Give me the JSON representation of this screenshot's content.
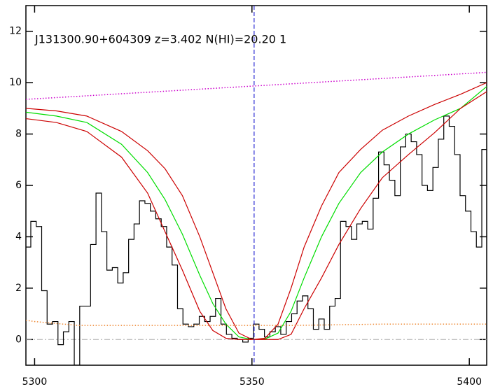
{
  "chart_data": {
    "type": "line",
    "annotation": "J131300.90+604309 z=3.402 N(HI)=20.20 1",
    "xlim": [
      5298,
      5404
    ],
    "ylim": [
      -1,
      13
    ],
    "xticks": [
      5300,
      5350,
      5400
    ],
    "yticks": [
      0,
      2,
      4,
      6,
      8,
      10,
      12
    ],
    "series": [
      {
        "style": "step",
        "color": "#000000",
        "x": [
          5298.5,
          5299.75,
          5301,
          5302.25,
          5303.5,
          5304.75,
          5306,
          5307.25,
          5308.5,
          5309.75,
          5311,
          5312.25,
          5313.5,
          5314.75,
          5316,
          5317.25,
          5318.5,
          5319.75,
          5321,
          5322.25,
          5323.5,
          5324.75,
          5326,
          5327.25,
          5328.5,
          5329.75,
          5331,
          5332.25,
          5333.5,
          5334.75,
          5336,
          5337.25,
          5338.5,
          5339.75,
          5341,
          5342.25,
          5343.5,
          5344.75,
          5346,
          5347.25,
          5348.5,
          5349.75,
          5351,
          5352.25,
          5353.5,
          5354.75,
          5356,
          5357.25,
          5358.5,
          5359.75,
          5361,
          5362.25,
          5363.5,
          5364.75,
          5366,
          5367.25,
          5368.5,
          5369.75,
          5371,
          5372.25,
          5373.5,
          5374.75,
          5376,
          5377.25,
          5378.5,
          5379.75,
          5381,
          5382.25,
          5383.5,
          5384.75,
          5386,
          5387.25,
          5388.5,
          5389.75,
          5391,
          5392.25,
          5393.5,
          5394.75,
          5396,
          5397.25,
          5398.5,
          5399.75,
          5401,
          5402.25,
          5403.5
        ],
        "values": [
          3.6,
          4.6,
          4.4,
          1.9,
          0.6,
          0.7,
          -0.2,
          0.3,
          0.7,
          -1.0,
          1.3,
          1.3,
          3.7,
          5.7,
          4.2,
          2.7,
          2.8,
          2.2,
          2.6,
          3.9,
          4.5,
          5.4,
          5.3,
          5.0,
          4.7,
          4.4,
          3.6,
          2.9,
          1.2,
          0.6,
          0.5,
          0.6,
          0.9,
          0.7,
          0.9,
          1.6,
          0.6,
          0.2,
          0.05,
          0.0,
          -0.1,
          0.05,
          0.6,
          0.4,
          0.1,
          0.3,
          0.5,
          0.2,
          0.7,
          1.0,
          1.5,
          1.7,
          1.2,
          0.4,
          0.8,
          0.4,
          1.3,
          1.6,
          4.6,
          4.4,
          3.9,
          4.5,
          4.6,
          4.3,
          5.5,
          7.3,
          6.8,
          6.2,
          5.6,
          7.5,
          8.0,
          7.7,
          7.2,
          6.0,
          5.8,
          6.7,
          7.8,
          8.7,
          8.3,
          7.2,
          5.6,
          5.0,
          4.2,
          3.6,
          7.4
        ]
      },
      {
        "style": "solid",
        "color": "#00dd00",
        "x": [
          5298,
          5305,
          5312,
          5320,
          5326,
          5330,
          5334,
          5338,
          5341,
          5344,
          5347,
          5350,
          5353,
          5356,
          5359,
          5362,
          5366,
          5370,
          5375,
          5380,
          5386,
          5392,
          5398,
          5404
        ],
        "values": [
          8.85,
          8.7,
          8.45,
          7.6,
          6.5,
          5.45,
          4.1,
          2.5,
          1.4,
          0.6,
          0.1,
          0,
          0.02,
          0.25,
          1.1,
          2.4,
          4.0,
          5.3,
          6.5,
          7.3,
          8.0,
          8.55,
          9.0,
          9.85
        ]
      },
      {
        "style": "solid",
        "color": "#cc0000",
        "x": [
          5298,
          5305,
          5312,
          5320,
          5326,
          5330,
          5334,
          5338,
          5341,
          5344,
          5347,
          5350,
          5353,
          5356,
          5359,
          5362,
          5366,
          5370,
          5375,
          5380,
          5386,
          5392,
          5398,
          5404
        ],
        "values": [
          9.0,
          8.9,
          8.7,
          8.1,
          7.35,
          6.65,
          5.6,
          4.0,
          2.6,
          1.2,
          0.25,
          0,
          0.05,
          0.6,
          2.0,
          3.6,
          5.2,
          6.5,
          7.4,
          8.15,
          8.7,
          9.15,
          9.55,
          10.0
        ]
      },
      {
        "style": "solid",
        "color": "#cc0000",
        "x": [
          5298,
          5305,
          5312,
          5320,
          5326,
          5330,
          5334,
          5338,
          5341,
          5344,
          5347,
          5350,
          5353,
          5356,
          5359,
          5362,
          5366,
          5370,
          5375,
          5380,
          5386,
          5392,
          5398,
          5404
        ],
        "values": [
          8.6,
          8.45,
          8.1,
          7.1,
          5.7,
          4.2,
          2.7,
          1.1,
          0.35,
          0.05,
          0,
          0,
          0,
          0,
          0.2,
          1.2,
          2.4,
          3.7,
          5.1,
          6.3,
          7.2,
          8.05,
          9.0,
          9.65
        ]
      },
      {
        "style": "dotted",
        "color": "#cc00cc",
        "x": [
          5298,
          5404
        ],
        "values": [
          9.35,
          10.4
        ]
      },
      {
        "style": "dotted",
        "color": "#ee8833",
        "x": [
          5298,
          5300,
          5310,
          5320,
          5340,
          5360,
          5380,
          5404
        ],
        "values": [
          0.75,
          0.7,
          0.55,
          0.55,
          0.55,
          0.55,
          0.6,
          0.6
        ]
      }
    ],
    "hline": {
      "value": 0,
      "color": "#aaaaaa"
    },
    "vline": {
      "value": 5350.5,
      "color": "#0000cc"
    }
  }
}
